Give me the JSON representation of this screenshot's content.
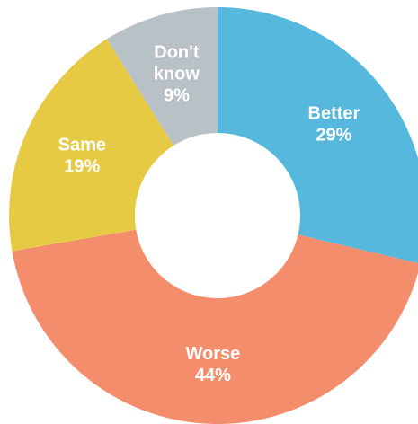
{
  "chart_data": {
    "type": "pie",
    "variant": "donut",
    "title": "",
    "start_angle_deg": 0,
    "direction": "clockwise",
    "slices": [
      {
        "name": "Better",
        "value": 29,
        "value_label": "29%",
        "color": "#56B8DD"
      },
      {
        "name": "Worse",
        "value": 44,
        "value_label": "44%",
        "color": "#F48D6C"
      },
      {
        "name": "Same",
        "value": 19,
        "value_label": "19%",
        "color": "#E7CA43"
      },
      {
        "name": "Don't know",
        "name_lines": [
          "Don't",
          "know"
        ],
        "value": 9,
        "value_label": "9%",
        "color": "#B8C1C6"
      }
    ],
    "hole_color": "#ffffff",
    "label_color": "#ffffff"
  }
}
